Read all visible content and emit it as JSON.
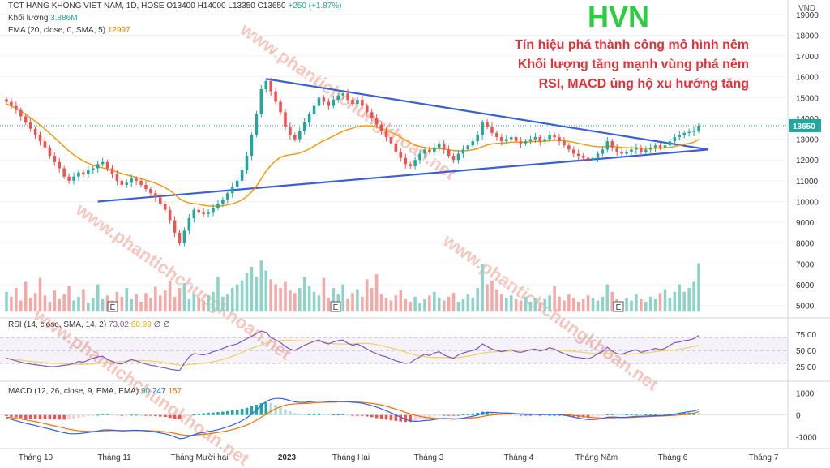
{
  "header": {
    "symbol_line": "TCT HANG KHONG VIET NAM, 1D, HOSE",
    "ohlc": "O13400 H14000 L13350 C13650",
    "change": "+250 (+1.87%)",
    "volume_label": "Khối lượng",
    "volume_value": "3.886M",
    "ema_label": "EMA (20, close, 0, SMA, 5)",
    "ema_value": "12997",
    "rsi_label": "RSI (14, close, SMA, 14, 2)",
    "rsi_value": "73.02",
    "rsi_ma_value": "60.99",
    "rsi_extra": "∅ ∅",
    "macd_label": "MACD (12, 26, close, 9, EMA, EMA)",
    "macd_hist": "90",
    "macd_line": "247",
    "macd_signal": "157"
  },
  "annotations": {
    "ticker": "HVN",
    "line1": "Tín hiệu phá thành công mô hình nêm",
    "line2": "Khối lượng tăng mạnh vùng phá nêm",
    "line3": "RSI, MACD ủng hộ xu hướng tăng"
  },
  "watermark": "www.phantichchungkhoan.net",
  "price_axis": {
    "currency": "VND",
    "ticks": [
      "19000",
      "18000",
      "17000",
      "16000",
      "15000",
      "14000",
      "13000",
      "12000",
      "11000",
      "10000",
      "9000",
      "8000",
      "7000",
      "6000",
      "5000"
    ],
    "last_price": "13650"
  },
  "rsi_axis": {
    "ticks": [
      "75.00",
      "50.00",
      "25.00"
    ]
  },
  "macd_axis": {
    "ticks": [
      "1000",
      "0",
      "-1000"
    ]
  },
  "time_axis": {
    "labels": [
      "Tháng 10",
      "Tháng 11",
      "Tháng Mười hai",
      "2023",
      "Tháng Hai",
      "Tháng 3",
      "Tháng 4",
      "Tháng Năm",
      "Tháng 6",
      "Tháng 7"
    ]
  },
  "earnings_marker": "E",
  "colors": {
    "up": "#26a69a",
    "down": "#ef5350",
    "ema": "#f39c12",
    "trendline": "#3a5fd9",
    "rsi": "#7e57c2",
    "rsi_ma": "#f0d060",
    "macd": "#2962ff",
    "signal": "#ff6d00"
  },
  "chart_data": {
    "type": "candlestick",
    "title": "TCT HANG KHONG VIET NAM, 1D, HOSE",
    "ylabel": "VND",
    "ylim": [
      4400,
      19500
    ],
    "x_labels": [
      "Tháng 10",
      "Tháng 11",
      "Tháng Mười hai",
      "2023",
      "Tháng Hai",
      "Tháng 3",
      "Tháng 4",
      "Tháng Năm",
      "Tháng 6",
      "Tháng 7"
    ],
    "close": [
      14800,
      14600,
      14400,
      14100,
      13800,
      13500,
      13200,
      12900,
      12600,
      12200,
      11900,
      11600,
      11200,
      11000,
      11200,
      11400,
      11300,
      11500,
      11600,
      11800,
      11900,
      11600,
      11300,
      11000,
      10800,
      10900,
      11100,
      11000,
      10800,
      10600,
      10400,
      10200,
      9900,
      9600,
      9100,
      8500,
      8000,
      8600,
      9200,
      9600,
      9500,
      9400,
      9500,
      9700,
      9900,
      10100,
      10400,
      10700,
      11000,
      11500,
      12200,
      13200,
      14200,
      15400,
      15800,
      15300,
      14800,
      14300,
      13600,
      13200,
      13000,
      13400,
      13800,
      14200,
      14600,
      15000,
      14800,
      14600,
      14900,
      15100,
      15200,
      14900,
      14700,
      14900,
      14600,
      14300,
      14000,
      13700,
      13400,
      13100,
      12800,
      12400,
      12100,
      11800,
      11700,
      12000,
      12300,
      12500,
      12400,
      12600,
      12800,
      12500,
      12200,
      12000,
      12300,
      12500,
      12700,
      12900,
      13200,
      13800,
      13600,
      13300,
      13100,
      12900,
      13000,
      13100,
      12900,
      12800,
      12900,
      13000,
      13100,
      12900,
      13000,
      13200,
      13100,
      12900,
      12700,
      12500,
      12300,
      12200,
      12100,
      12000,
      12100,
      12300,
      12500,
      12900,
      12600,
      12400,
      12300,
      12400,
      12500,
      12600,
      12400,
      12500,
      12600,
      12700,
      12600,
      12700,
      12900,
      13100,
      13200,
      13300,
      13350,
      13400,
      13650
    ],
    "ema20": [
      14700,
      14600,
      14480,
      14350,
      14200,
      14030,
      13860,
      13680,
      13490,
      13280,
      13070,
      12860,
      12640,
      12430,
      12250,
      12090,
      11950,
      11840,
      11750,
      11680,
      11620,
      11570,
      11500,
      11420,
      11340,
      11280,
      11220,
      11160,
      11100,
      11030,
      10960,
      10880,
      10780,
      10670,
      10530,
      10350,
      10140,
      10010,
      9930,
      9900,
      9870,
      9820,
      9790,
      9780,
      9790,
      9800,
      9840,
      9900,
      9970,
      10080,
      10240,
      10460,
      10740,
      11100,
      11460,
      11740,
      11960,
      12130,
      12210,
      12250,
      12280,
      12340,
      12420,
      12530,
      12660,
      12810,
      12930,
      13030,
      13150,
      13270,
      13380,
      13460,
      13530,
      13600,
      13640,
      13650,
      13630,
      13590,
      13520,
      13440,
      13340,
      13220,
      13090,
      12950,
      12820,
      12720,
      12650,
      12600,
      12560,
      12540,
      12540,
      12520,
      12490,
      12450,
      12440,
      12440,
      12450,
      12490,
      12540,
      12640,
      12720,
      12770,
      12800,
      12810,
      12830,
      12850,
      12850,
      12850,
      12860,
      12870,
      12890,
      12890,
      12900,
      12930,
      12950,
      12940,
      12920,
      12890,
      12850,
      12800,
      12750,
      12700,
      12660,
      12640,
      12630,
      12660,
      12650,
      12630,
      12600,
      12590,
      12580,
      12580,
      12560,
      12560,
      12560,
      12570,
      12570,
      12580,
      12610,
      12650,
      12700,
      12750,
      12800,
      12850,
      12997
    ],
    "volume_millions": [
      1.6,
      1.2,
      1.9,
      0.9,
      2.4,
      1.1,
      1.5,
      2.7,
      1.3,
      0.8,
      1.7,
      1.0,
      1.4,
      2.1,
      0.9,
      1.2,
      1.8,
      0.7,
      1.1,
      2.2,
      1.0,
      1.3,
      0.9,
      1.6,
      1.2,
      1.9,
      1.0,
      1.4,
      0.8,
      1.5,
      1.1,
      2.0,
      1.3,
      1.7,
      2.5,
      1.2,
      1.9,
      2.3,
      1.0,
      1.4,
      1.1,
      0.9,
      1.3,
      1.6,
      2.8,
      1.2,
      1.4,
      1.9,
      2.2,
      2.5,
      3.1,
      3.6,
      2.8,
      4.1,
      3.3,
      2.6,
      2.2,
      1.9,
      2.4,
      1.7,
      1.5,
      1.9,
      2.8,
      2.1,
      1.6,
      1.3,
      2.7,
      1.1,
      1.9,
      1.4,
      2.2,
      1.0,
      1.5,
      1.8,
      1.2,
      2.6,
      1.9,
      3.0,
      1.4,
      1.1,
      0.9,
      1.3,
      1.7,
      1.0,
      0.8,
      1.2,
      0.7,
      1.0,
      1.3,
      1.6,
      1.1,
      0.9,
      1.2,
      1.5,
      0.8,
      1.0,
      1.4,
      1.1,
      1.9,
      3.8,
      2.2,
      2.5,
      1.8,
      1.4,
      1.1,
      1.3,
      1.0,
      0.9,
      1.2,
      0.8,
      1.1,
      0.7,
      1.0,
      1.3,
      2.1,
      1.2,
      0.9,
      1.4,
      1.1,
      0.8,
      1.0,
      1.3,
      1.1,
      0.9,
      1.2,
      2.2,
      1.6,
      1.0,
      0.8,
      1.1,
      0.9,
      1.4,
      1.0,
      0.8,
      1.2,
      1.0,
      1.5,
      1.8,
      1.1,
      1.6,
      2.2,
      1.6,
      1.9,
      2.4,
      3.886
    ],
    "rsi": [
      38,
      36,
      34,
      32,
      30,
      29,
      28,
      27,
      26,
      25,
      25,
      26,
      27,
      28,
      30,
      33,
      32,
      35,
      38,
      40,
      41,
      36,
      33,
      30,
      29,
      33,
      36,
      34,
      31,
      29,
      27,
      26,
      24,
      23,
      21,
      20,
      19,
      30,
      40,
      45,
      44,
      43,
      45,
      48,
      50,
      53,
      56,
      58,
      60,
      64,
      68,
      72,
      76,
      80,
      78,
      70,
      66,
      62,
      56,
      52,
      50,
      54,
      58,
      61,
      64,
      66,
      62,
      60,
      63,
      65,
      66,
      61,
      58,
      60,
      56,
      52,
      48,
      45,
      42,
      40,
      37,
      34,
      32,
      30,
      31,
      36,
      40,
      44,
      42,
      46,
      48,
      43,
      40,
      38,
      43,
      46,
      48,
      50,
      53,
      60,
      56,
      52,
      50,
      48,
      50,
      51,
      48,
      47,
      49,
      51,
      52,
      49,
      51,
      54,
      52,
      48,
      45,
      42,
      40,
      39,
      38,
      37,
      40,
      45,
      48,
      55,
      49,
      45,
      44,
      47,
      49,
      51,
      47,
      49,
      51,
      53,
      51,
      53,
      58,
      62,
      63,
      65,
      66,
      68,
      73.02
    ],
    "macd_line": [
      -150,
      -200,
      -260,
      -320,
      -380,
      -430,
      -480,
      -540,
      -590,
      -640,
      -700,
      -760,
      -810,
      -850,
      -860,
      -850,
      -830,
      -800,
      -770,
      -730,
      -690,
      -680,
      -690,
      -710,
      -730,
      -720,
      -700,
      -700,
      -710,
      -730,
      -750,
      -780,
      -820,
      -860,
      -920,
      -1000,
      -1080,
      -1060,
      -980,
      -900,
      -840,
      -800,
      -760,
      -720,
      -670,
      -610,
      -540,
      -460,
      -370,
      -260,
      -130,
      40,
      230,
      440,
      620,
      720,
      760,
      760,
      720,
      660,
      600,
      580,
      580,
      600,
      620,
      640,
      630,
      610,
      610,
      620,
      630,
      610,
      580,
      570,
      540,
      490,
      430,
      360,
      280,
      190,
      100,
      0,
      -100,
      -200,
      -270,
      -290,
      -280,
      -250,
      -240,
      -210,
      -170,
      -160,
      -170,
      -190,
      -170,
      -140,
      -100,
      -60,
      -10,
      80,
      120,
      120,
      110,
      90,
      90,
      80,
      60,
      40,
      30,
      30,
      30,
      20,
      20,
      30,
      30,
      20,
      -10,
      -50,
      -100,
      -140,
      -180,
      -210,
      -210,
      -190,
      -160,
      -100,
      -90,
      -100,
      -110,
      -100,
      -80,
      -60,
      -60,
      -50,
      -40,
      -30,
      -30,
      -20,
      0,
      40,
      80,
      120,
      150,
      180,
      247
    ],
    "macd_signal": [
      -100,
      -120,
      -150,
      -180,
      -220,
      -260,
      -300,
      -350,
      -400,
      -450,
      -500,
      -550,
      -600,
      -650,
      -690,
      -720,
      -740,
      -750,
      -750,
      -740,
      -730,
      -720,
      -710,
      -710,
      -710,
      -710,
      -710,
      -710,
      -710,
      -710,
      -720,
      -730,
      -750,
      -770,
      -800,
      -840,
      -890,
      -920,
      -930,
      -920,
      -900,
      -880,
      -860,
      -830,
      -800,
      -760,
      -720,
      -670,
      -610,
      -540,
      -460,
      -360,
      -240,
      -100,
      40,
      170,
      290,
      380,
      450,
      490,
      510,
      520,
      530,
      540,
      560,
      570,
      580,
      590,
      590,
      600,
      600,
      600,
      600,
      590,
      580,
      560,
      530,
      500,
      460,
      400,
      340,
      270,
      200,
      120,
      50,
      -10,
      -60,
      -100,
      -130,
      -150,
      -160,
      -160,
      -160,
      -170,
      -170,
      -160,
      -150,
      -130,
      -110,
      -70,
      -30,
      0,
      20,
      40,
      50,
      60,
      60,
      60,
      50,
      50,
      40,
      40,
      30,
      30,
      30,
      30,
      20,
      10,
      -20,
      -40,
      -70,
      -100,
      -120,
      -130,
      -140,
      -130,
      -130,
      -120,
      -120,
      -120,
      -110,
      -100,
      -90,
      -80,
      -70,
      -60,
      -50,
      -40,
      -30,
      -20,
      0,
      20,
      50,
      80,
      157
    ],
    "rsi_levels": [
      70,
      50,
      30
    ],
    "wedge_upper": {
      "from": 15900,
      "to": 12500
    },
    "wedge_lower": {
      "from": 10000,
      "to": 12500
    }
  }
}
